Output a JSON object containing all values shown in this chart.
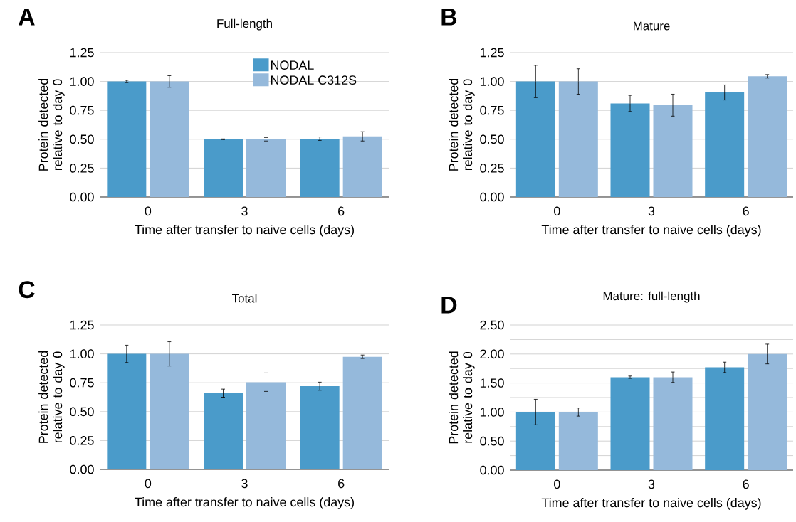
{
  "chart_data": [
    {
      "type": "bar",
      "title": "Full-length",
      "xlabel": "Time after transfer to naive cells (days)",
      "ylabel": "Protein detected relative to day 0",
      "annotations": [
        "A"
      ],
      "categories": [
        "0",
        "3",
        "6"
      ],
      "series": [
        {
          "name": "NODAL",
          "color": "#4a9bca",
          "values": [
            1.0,
            0.5,
            0.505
          ],
          "errors": [
            0.01,
            0.003,
            0.015
          ]
        },
        {
          "name": "NODAL C312S",
          "color": "#95b9db",
          "values": [
            1.0,
            0.5,
            0.525
          ],
          "errors": [
            0.05,
            0.015,
            0.04
          ]
        }
      ],
      "ylim": [
        0,
        1.25
      ],
      "yticks": [
        {
          "value": 0,
          "label": "0.00"
        },
        0.25,
        {
          "value": 0.5,
          "label": "0.50"
        },
        0.75,
        {
          "value": 1,
          "label": "1.00"
        },
        1.25
      ],
      "grid": "y",
      "legend": "top right"
    },
    {
      "type": "bar",
      "title": "Mature",
      "xlabel": "Time after transfer to naive cells (days)",
      "ylabel": "Protein detected relative to day 0",
      "annotations": [
        "B"
      ],
      "categories": [
        "0",
        "3",
        "6"
      ],
      "series": [
        {
          "color": "#4a9bca",
          "values": [
            1.0,
            0.81,
            0.905
          ],
          "errors": [
            0.14,
            0.07,
            0.065
          ]
        },
        {
          "color": "#95b9db",
          "values": [
            1.0,
            0.795,
            1.045
          ],
          "errors": [
            0.11,
            0.095,
            0.015
          ]
        }
      ],
      "ylim": [
        0,
        1.25
      ],
      "yticks": [
        {
          "value": 0,
          "label": "0.00"
        },
        0.25,
        {
          "value": 0.5,
          "label": "0.50"
        },
        0.75,
        {
          "value": 1,
          "label": "1.00"
        },
        1.25
      ],
      "grid": "y"
    },
    {
      "type": "bar",
      "title": "Total",
      "xlabel": "Time after transfer to naive cells (days)",
      "ylabel": "Protein detected relative to day 0",
      "annotations": [
        "C"
      ],
      "categories": [
        "0",
        "3",
        "6"
      ],
      "series": [
        {
          "color": "#4a9bca",
          "values": [
            1.0,
            0.66,
            0.72
          ],
          "errors": [
            0.075,
            0.035,
            0.035
          ]
        },
        {
          "color": "#95b9db",
          "values": [
            1.0,
            0.755,
            0.975
          ],
          "errors": [
            0.105,
            0.08,
            0.015
          ]
        }
      ],
      "ylim": [
        0,
        1.25
      ],
      "yticks": [
        {
          "value": 0,
          "label": "0.00"
        },
        0.25,
        {
          "value": 0.5,
          "label": "0.50"
        },
        0.75,
        {
          "value": 1,
          "label": "1.00"
        },
        1.25
      ],
      "grid": "y"
    },
    {
      "type": "bar",
      "title": "Mature: full-length",
      "xlabel": "Time after transfer to naive cells (days)",
      "ylabel": "Protein detected relative to day 0",
      "annotations": [
        "D"
      ],
      "categories": [
        "0",
        "3",
        "6"
      ],
      "series": [
        {
          "color": "#4a9bca",
          "values": [
            1.0,
            1.6,
            1.77
          ],
          "errors": [
            0.22,
            0.02,
            0.09
          ]
        },
        {
          "color": "#95b9db",
          "values": [
            1.0,
            1.6,
            2.0
          ],
          "errors": [
            0.07,
            0.09,
            0.17
          ]
        }
      ],
      "ylim": [
        0,
        2.5
      ],
      "yticks": [
        {
          "value": 0,
          "label": "0.00"
        },
        {
          "value": 0.25,
          "label": null
        },
        {
          "value": 0.5,
          "label": "0.50"
        },
        {
          "value": 0.75,
          "label": null
        },
        {
          "value": 1,
          "label": "1.00"
        },
        {
          "value": 1.25,
          "label": null
        },
        {
          "value": 1.5,
          "label": "1.50"
        },
        {
          "value": 1.75,
          "label": null
        },
        {
          "value": 2,
          "label": "2.00"
        },
        {
          "value": 2.25,
          "label": null
        },
        {
          "value": 2.5,
          "label": "2.50"
        }
      ],
      "grid": "y"
    }
  ]
}
